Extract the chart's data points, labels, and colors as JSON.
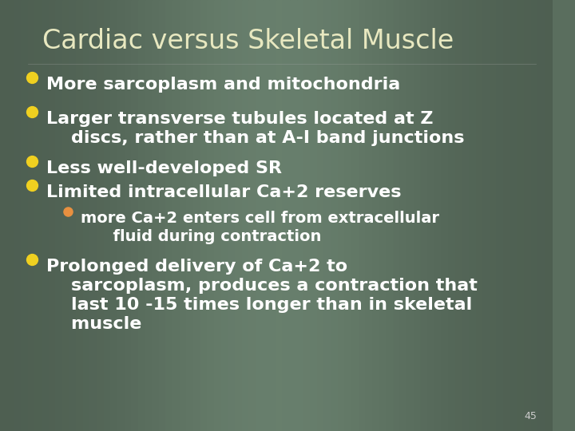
{
  "title": "Cardiac versus Skeletal Muscle",
  "title_color": "#e8e8c0",
  "title_fontsize": 24,
  "bg_color": "#5a6e5e",
  "bullet_color_main": "#f0d020",
  "bullet_color_sub": "#e89040",
  "text_color": "#ffffff",
  "slide_number": "45",
  "slide_number_color": "#cccccc",
  "font_family": "DejaVu Sans",
  "main_fontsize": 16,
  "sub_fontsize": 14,
  "bullets": [
    {
      "level": 0,
      "text": "More sarcoplasm and mitochondria"
    },
    {
      "level": 0,
      "text": "Larger transverse tubules located at Z\n    discs, rather than at A-I band junctions"
    },
    {
      "level": 0,
      "text": "Less well-developed SR"
    },
    {
      "level": 0,
      "text": "Limited intracellular Ca+2 reserves"
    },
    {
      "level": 1,
      "text": "more Ca+2 enters cell from extracellular\n      fluid during contraction"
    },
    {
      "level": 0,
      "text": "Prolonged delivery of Ca+2 to\n    sarcoplasm, produces a contraction that\n    last 10 -15 times longer than in skeletal\n    muscle"
    }
  ]
}
